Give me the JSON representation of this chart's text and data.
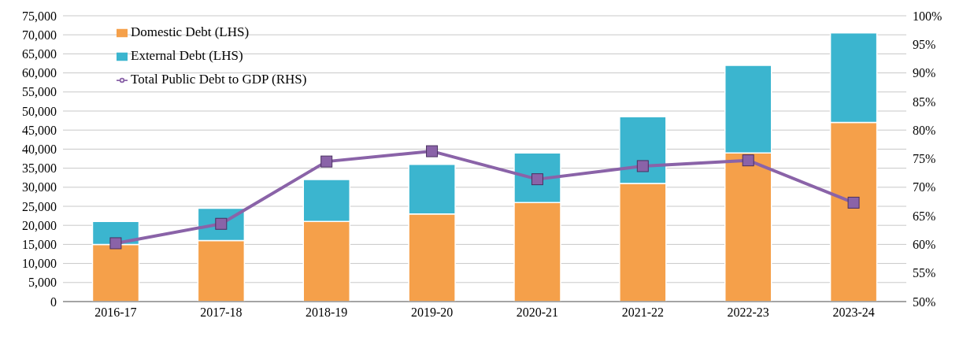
{
  "chart_data": {
    "type": "bar",
    "stacked": true,
    "categories": [
      "2016-17",
      "2017-18",
      "2018-19",
      "2019-20",
      "2020-21",
      "2021-22",
      "2022-23",
      "2023-24"
    ],
    "series": [
      {
        "name": "Domestic Debt (LHS)",
        "color": "#f5a04a",
        "values": [
          15000,
          16000,
          21000,
          23000,
          26000,
          31000,
          39000,
          47000
        ]
      },
      {
        "name": "External Debt (LHS)",
        "color": "#3bb5cf",
        "values": [
          6000,
          8500,
          11000,
          13000,
          13000,
          17500,
          23000,
          23500
        ]
      },
      {
        "name": "Total Public Debt to GDP (RHS)",
        "type": "line",
        "axis": "y2",
        "color": "#8a63a8",
        "values": [
          60.2,
          63.6,
          74.5,
          76.3,
          71.4,
          73.7,
          74.7,
          67.3
        ]
      }
    ],
    "ylim": [
      0,
      75000
    ],
    "yticks": [
      {
        "value": 0,
        "label": "0"
      },
      {
        "value": 5000,
        "label": "5,000"
      },
      {
        "value": 10000,
        "label": "10,000"
      },
      {
        "value": 15000,
        "label": "15,000"
      },
      {
        "value": 20000,
        "label": "20,000"
      },
      {
        "value": 25000,
        "label": "25,000"
      },
      {
        "value": 30000,
        "label": "30,000"
      },
      {
        "value": 35000,
        "label": "35,000"
      },
      {
        "value": 40000,
        "label": "40,000"
      },
      {
        "value": 45000,
        "label": "45,000"
      },
      {
        "value": 50000,
        "label": "50,000"
      },
      {
        "value": 55000,
        "label": "55,000"
      },
      {
        "value": 60000,
        "label": "60,000"
      },
      {
        "value": 65000,
        "label": "65,000"
      },
      {
        "value": 70000,
        "label": "70,000"
      },
      {
        "value": 75000,
        "label": "75,000"
      }
    ],
    "y2lim": [
      50,
      100
    ],
    "y2ticks": [
      {
        "value": 50,
        "label": "50%"
      },
      {
        "value": 55,
        "label": "55%"
      },
      {
        "value": 60,
        "label": "60%"
      },
      {
        "value": 65,
        "label": "65%"
      },
      {
        "value": 70,
        "label": "70%"
      },
      {
        "value": 75,
        "label": "75%"
      },
      {
        "value": 80,
        "label": "80%"
      },
      {
        "value": 85,
        "label": "85%"
      },
      {
        "value": 90,
        "label": "90%"
      },
      {
        "value": 95,
        "label": "95%"
      },
      {
        "value": 100,
        "label": "100%"
      }
    ],
    "grid": "y",
    "legend": "top left",
    "marker": "square",
    "line_style": "solid"
  }
}
